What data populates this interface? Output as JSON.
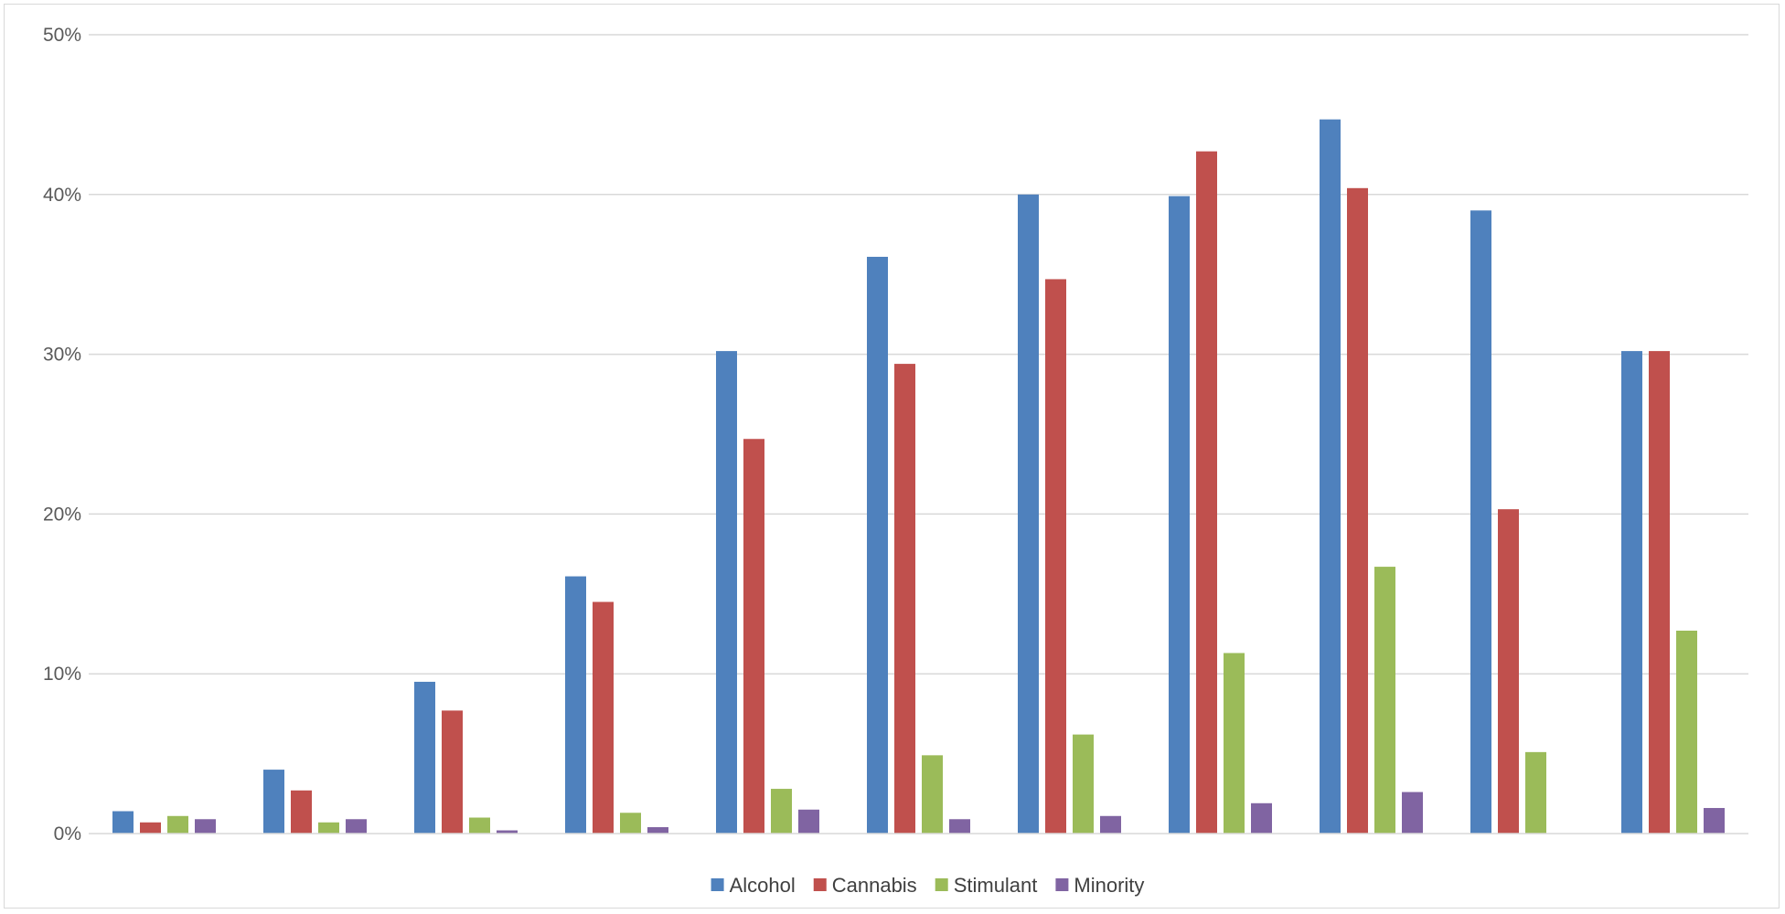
{
  "chart_data": {
    "type": "bar",
    "categories": [
      "",
      "",
      "",
      "",
      "",
      "",
      "",
      "",
      "",
      "",
      ""
    ],
    "series": [
      {
        "name": "Alcohol",
        "color": "#4f81bd",
        "values": [
          1.4,
          4.0,
          9.5,
          16.1,
          30.2,
          36.1,
          40.0,
          39.9,
          44.7,
          39.0,
          30.2
        ]
      },
      {
        "name": "Cannabis",
        "color": "#c0504d",
        "values": [
          0.7,
          2.7,
          7.7,
          14.5,
          24.7,
          29.4,
          34.7,
          42.7,
          40.4,
          20.3,
          30.2
        ]
      },
      {
        "name": "Stimulant",
        "color": "#9bbb59",
        "values": [
          1.1,
          0.7,
          1.0,
          1.3,
          2.8,
          4.9,
          6.2,
          11.3,
          16.7,
          5.1,
          12.7
        ]
      },
      {
        "name": "Minority",
        "color": "#8064a2",
        "values": [
          0.9,
          0.9,
          0.2,
          0.4,
          1.5,
          0.9,
          1.1,
          1.9,
          2.6,
          0.0,
          1.6
        ]
      }
    ],
    "yticks": [
      "0%",
      "10%",
      "20%",
      "30%",
      "40%",
      "50%"
    ],
    "ylim": [
      0,
      50
    ],
    "grid": true,
    "legend_position": "bottom"
  }
}
